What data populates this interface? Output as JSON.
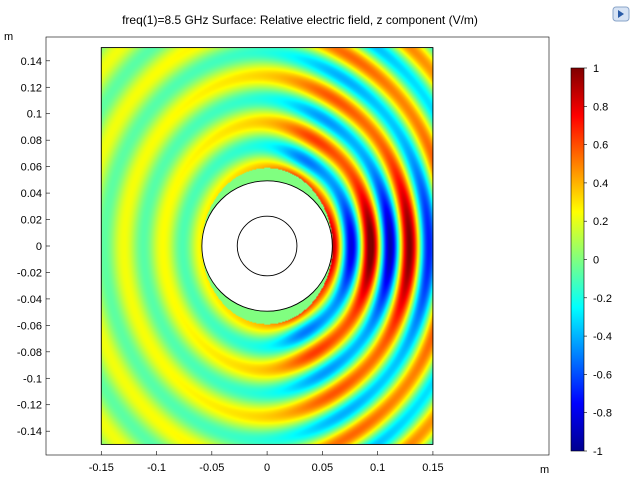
{
  "chart_data": {
    "type": "heatmap",
    "title": "freq(1)=8.5 GHz   Surface: Relative electric field, z component (V/m)",
    "x_unit": "m",
    "y_unit": "m",
    "xlim": [
      -0.2,
      0.255
    ],
    "ylim": [
      -0.158,
      0.158
    ],
    "x_ticks": [
      "-0.15",
      "-0.1",
      "-0.05",
      "0",
      "0.05",
      "0.1",
      "0.15"
    ],
    "y_ticks": [
      "0.14",
      "0.12",
      "0.1",
      "0.08",
      "0.06",
      "0.04",
      "0.02",
      "0",
      "-0.02",
      "-0.04",
      "-0.06",
      "-0.08",
      "-0.1",
      "-0.12",
      "-0.14"
    ],
    "domain": {
      "x": [
        -0.15,
        0.15
      ],
      "y": [
        -0.15,
        0.15
      ]
    },
    "cylinder": {
      "center": [
        0,
        0
      ],
      "outer_radius": 0.059,
      "inner_radius": 0.027
    },
    "field": {
      "frequency_ghz": 8.5,
      "incidence": "plane wave from left"
    },
    "colorbar": {
      "min": -1,
      "max": 1,
      "ticks": [
        "1",
        "0.8",
        "0.6",
        "0.4",
        "0.2",
        "0",
        "-0.2",
        "-0.4",
        "-0.6",
        "-0.8",
        "-1"
      ],
      "colormap": "jet"
    },
    "grid": false,
    "legend": "none"
  },
  "toolbar": {
    "icon": "comsol-logo-icon"
  }
}
